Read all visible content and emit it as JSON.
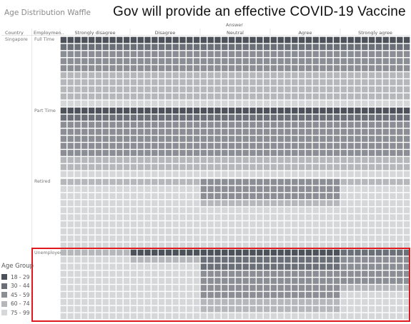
{
  "header": {
    "sheet_title": "Age Distribution Waffle",
    "main_title": "Gov will provide an effective  COVID-19 Vaccine"
  },
  "columns": {
    "answer_header": "Answer",
    "country_header": "Country",
    "employment_header": "Employmen..",
    "answers": [
      "Strongly disagree",
      "Disagree",
      "Neutral",
      "Agree",
      "Strongly agree"
    ]
  },
  "rows": {
    "country": "Singapore",
    "employment": [
      "Full Time",
      "Part Time",
      "Retired",
      "Unemployed"
    ]
  },
  "legend": {
    "title": "Age Group",
    "items": [
      {
        "label": "18 - 29",
        "color": "#4d5159"
      },
      {
        "label": "30 - 44",
        "color": "#6b6f77"
      },
      {
        "label": "45 - 59",
        "color": "#8b8e95"
      },
      {
        "label": "60 - 74",
        "color": "#b5b7bb"
      },
      {
        "label": "75 - 99",
        "color": "#d6d7d9"
      }
    ]
  },
  "chart_data": {
    "type": "heatmap",
    "title": "Gov will provide an effective  COVID-19 Vaccine",
    "x_dimension": "Answer",
    "y_dimensions": [
      "Country",
      "Employment"
    ],
    "categories": [
      "Strongly disagree",
      "Disagree",
      "Neutral",
      "Agree",
      "Strongly agree"
    ],
    "rows": [
      "Full Time",
      "Part Time",
      "Retired",
      "Unemployed"
    ],
    "legend_title": "Age Group",
    "legend_placement": "left-bottom",
    "age_groups": [
      "18 - 29",
      "30 - 44",
      "45 - 59",
      "60 - 74",
      "75 - 99"
    ],
    "cells_per_side": 10,
    "age_group_share_percent": {
      "Full Time": {
        "Strongly disagree": [
          10,
          10,
          30,
          40,
          10
        ],
        "Disagree": [
          10,
          10,
          30,
          40,
          10
        ],
        "Neutral": [
          10,
          10,
          30,
          40,
          10
        ],
        "Agree": [
          10,
          10,
          30,
          40,
          10
        ],
        "Strongly agree": [
          10,
          10,
          30,
          40,
          10
        ]
      },
      "Part Time": {
        "Strongly disagree": [
          10,
          10,
          50,
          20,
          10
        ],
        "Disagree": [
          10,
          10,
          50,
          20,
          10
        ],
        "Neutral": [
          10,
          10,
          50,
          20,
          10
        ],
        "Agree": [
          10,
          10,
          50,
          20,
          10
        ],
        "Strongly agree": [
          10,
          10,
          50,
          20,
          10
        ]
      },
      "Retired": {
        "Strongly disagree": [
          0,
          0,
          0,
          10,
          90
        ],
        "Disagree": [
          0,
          0,
          0,
          10,
          90
        ],
        "Neutral": [
          0,
          0,
          30,
          10,
          60
        ],
        "Agree": [
          0,
          0,
          30,
          10,
          60
        ],
        "Strongly agree": [
          0,
          0,
          0,
          10,
          90
        ]
      },
      "Unemployed": {
        "Strongly disagree": [
          0,
          0,
          0,
          10,
          90
        ],
        "Disagree": [
          10,
          0,
          0,
          10,
          80
        ],
        "Neutral": [
          10,
          20,
          40,
          20,
          10
        ],
        "Agree": [
          10,
          20,
          40,
          20,
          10
        ],
        "Strongly agree": [
          0,
          10,
          40,
          10,
          40
        ]
      }
    },
    "highlight_row": "Unemployed",
    "highlight_color": "#e0191e"
  }
}
